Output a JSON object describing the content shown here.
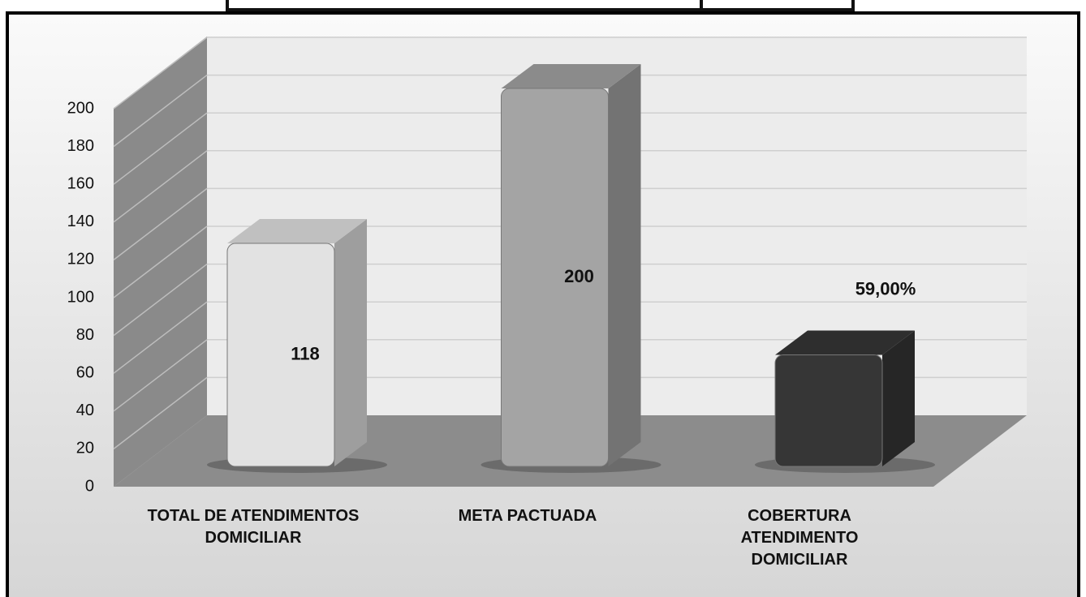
{
  "chart_data": {
    "type": "bar3d",
    "categories": [
      "TOTAL DE ATENDIMENTOS DOMICILIAR",
      "META PACTUADA",
      "COBERTURA ATENDIMENTO DOMICILIAR"
    ],
    "values": [
      118,
      200,
      59
    ],
    "value_labels": [
      "118",
      "200",
      "59,00%"
    ],
    "colors": [
      "#e2e2e2",
      "#a4a4a4",
      "#363636"
    ],
    "ylim": [
      0,
      200
    ],
    "yticks": [
      0,
      20,
      40,
      60,
      80,
      100,
      120,
      140,
      160,
      180,
      200
    ],
    "grid": true
  }
}
